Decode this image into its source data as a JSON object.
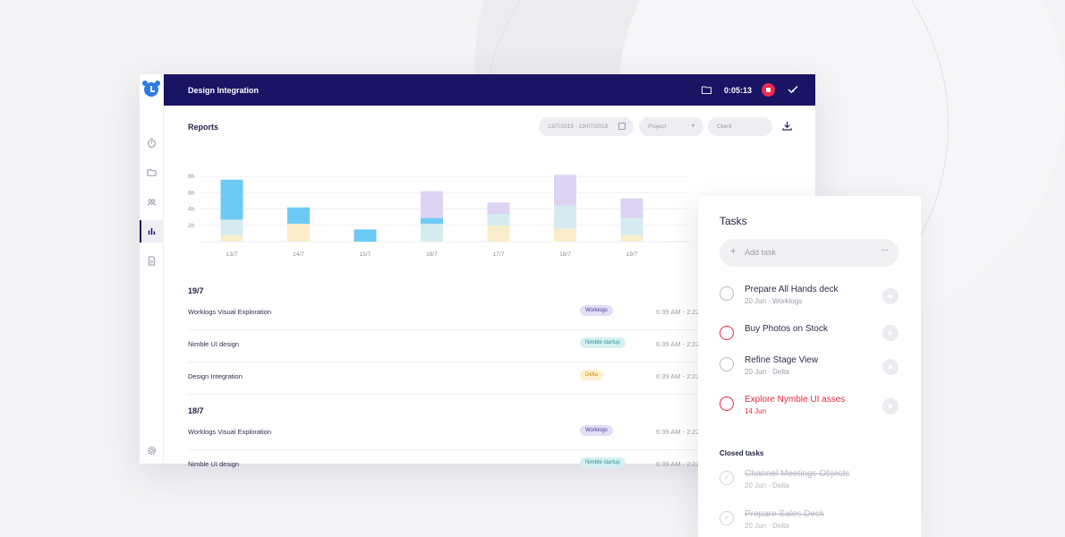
{
  "topbar": {
    "title": "Design Integration",
    "timer": "0:05:13",
    "accent_color": "#1a1464",
    "stop_color": "#ef2a50"
  },
  "sidebar": {
    "items": [
      {
        "icon": "stopwatch-icon"
      },
      {
        "icon": "folder-icon"
      },
      {
        "icon": "team-icon"
      },
      {
        "icon": "reports-bar-chart-icon",
        "active": true
      },
      {
        "icon": "document-icon"
      },
      {
        "icon": "gear-icon"
      }
    ]
  },
  "reports": {
    "title": "Reports",
    "date_range": "13/7/2019 - 19/07/2019",
    "project_placeholder": "Project",
    "client_placeholder": "Client"
  },
  "chart_data": {
    "type": "bar",
    "stacked": true,
    "categories": [
      "13/7",
      "14/7",
      "15/7",
      "16/7",
      "17/7",
      "18/7",
      "19/7"
    ],
    "y_tick_labels": [
      "2h",
      "4h",
      "6h",
      "8h"
    ],
    "ylim": [
      0,
      9
    ],
    "grid": true,
    "series": [
      {
        "color": "#f9edcc",
        "values": [
          0.8,
          2.2,
          0,
          0,
          2.0,
          1.6,
          0.8
        ]
      },
      {
        "color": "#d6ebf0",
        "values": [
          1.9,
          0,
          0,
          2.2,
          1.4,
          2.8,
          2.1
        ]
      },
      {
        "color": "#6ccaf5",
        "values": [
          4.9,
          2.0,
          1.5,
          0.7,
          0,
          0,
          0
        ]
      },
      {
        "color": "#ddd4f4",
        "values": [
          0,
          0,
          0,
          3.3,
          1.4,
          3.8,
          2.4
        ]
      }
    ]
  },
  "logs": [
    {
      "date": "19/7",
      "rows": [
        {
          "name": "Worklogs Visual Exploration",
          "tag": "Worklogs",
          "tag_style": "purple",
          "time": "6:39 AM - 2:22"
        },
        {
          "name": "Nimble UI design",
          "tag": "Nimble startup",
          "tag_style": "teal",
          "time": "6:39 AM - 2:22"
        },
        {
          "name": "Design Integration",
          "tag": "Delta",
          "tag_style": "yellow",
          "time": "6:39 AM - 2:22"
        }
      ]
    },
    {
      "date": "18/7",
      "rows": [
        {
          "name": "Worklogs Visual Exploration",
          "tag": "Worklogs",
          "tag_style": "purple",
          "time": "6:39 AM - 2:22"
        },
        {
          "name": "Nimble UI design",
          "tag": "Nimble startup",
          "tag_style": "teal",
          "time": "6:39 AM - 2:22"
        }
      ]
    }
  ],
  "tasks": {
    "title": "Tasks",
    "add_placeholder": "Add task",
    "open": [
      {
        "title": "Prepare All Hands deck",
        "sub": "20 Jun · Worklogs",
        "overdue": false
      },
      {
        "title": "Buy Photos on Stock",
        "sub": "",
        "overdue": false,
        "highlight": true
      },
      {
        "title": "Refine Stage View",
        "sub": "20 Jun · Delta",
        "overdue": false
      },
      {
        "title": "Explore Nymble UI asses",
        "sub": "14 Jun",
        "overdue": true
      }
    ],
    "closed_label": "Closed tasks",
    "closed": [
      {
        "title": "Channel Meetings Objects",
        "sub": "20 Jun · Delta"
      },
      {
        "title": "Prepare Sales Deck",
        "sub": "20 Jun · Delta"
      }
    ]
  }
}
